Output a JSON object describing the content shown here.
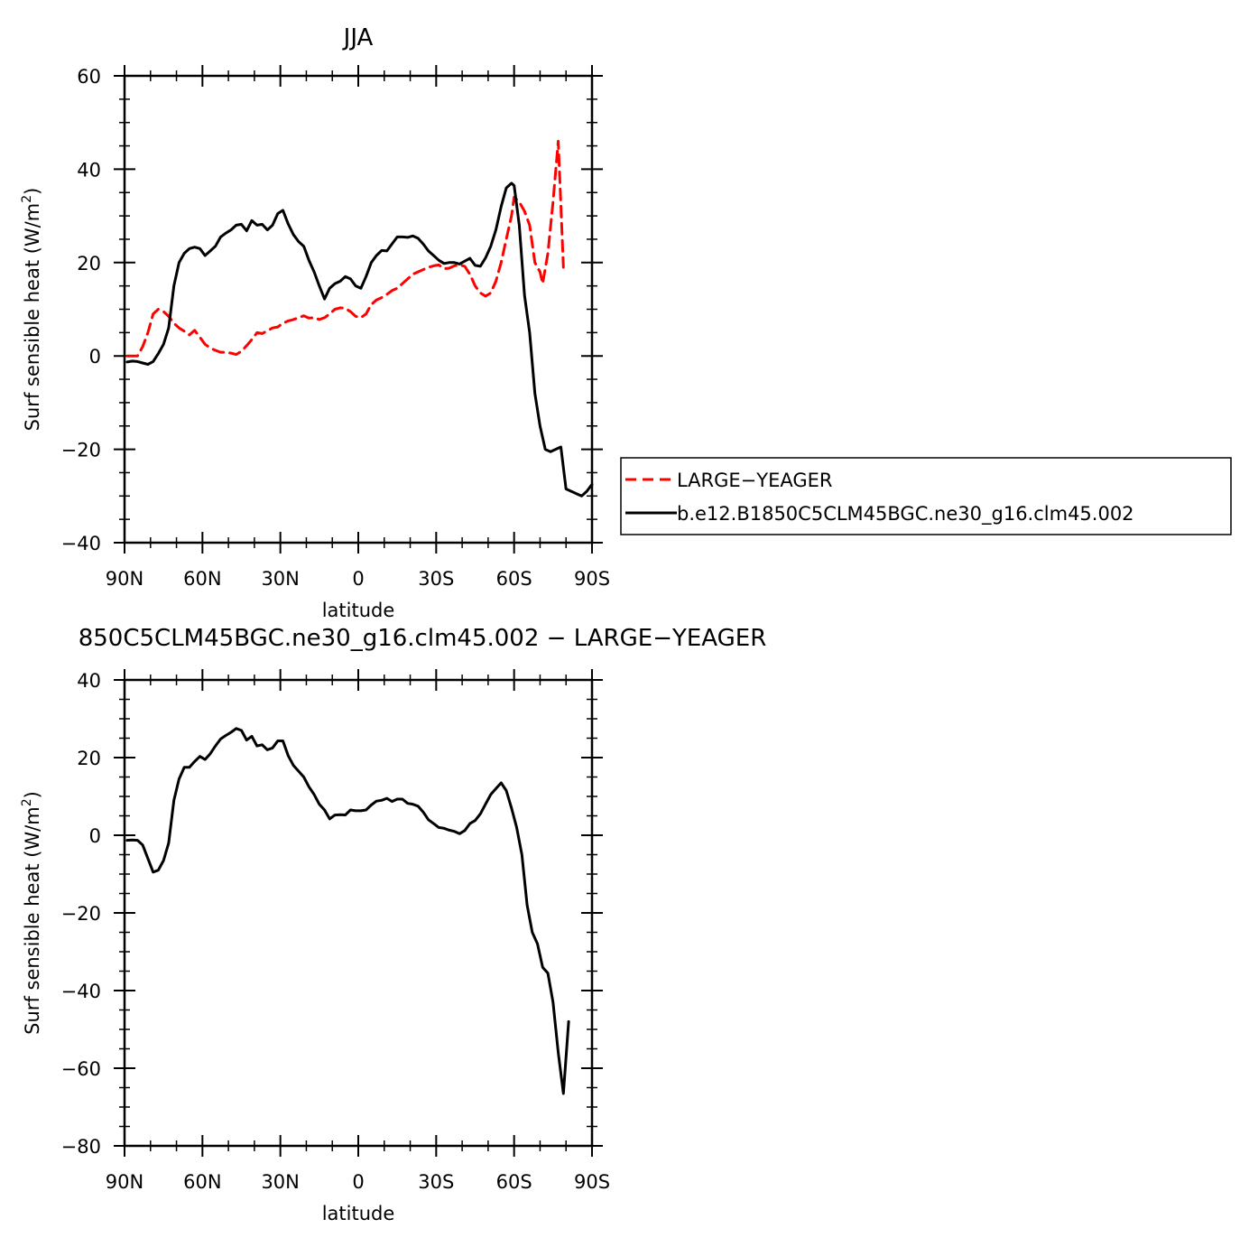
{
  "chart_data": [
    {
      "type": "line",
      "title": "JJA",
      "xlabel": "latitude",
      "ylabel": "Surf sensible heat (W/m",
      "ylabel_sup": "2",
      "ylabel_close": ")",
      "xlim": [
        90,
        -90
      ],
      "ylim": [
        -40,
        60
      ],
      "xticks": [
        90,
        60,
        30,
        0,
        -30,
        -60,
        -90
      ],
      "xtick_labels": [
        "90N",
        "60N",
        "30N",
        "0",
        "30S",
        "60S",
        "90S"
      ],
      "yticks": [
        -40,
        -20,
        0,
        20,
        40,
        60
      ],
      "ytick_labels": [
        "−40",
        "−20",
        "0",
        "20",
        "40",
        "60"
      ],
      "grid": false,
      "legend_position": "right",
      "series": [
        {
          "name": "LARGE−YEAGER",
          "color": "#ff0000",
          "dash": "dashed",
          "points": [
            [
              89,
              0
            ],
            [
              87,
              0
            ],
            [
              85,
              0
            ],
            [
              83,
              2
            ],
            [
              81,
              5
            ],
            [
              79,
              9
            ],
            [
              77,
              10
            ],
            [
              75,
              9.5
            ],
            [
              73,
              8.5
            ],
            [
              71,
              7
            ],
            [
              69,
              6
            ],
            [
              67,
              5.3
            ],
            [
              65,
              4.5
            ],
            [
              63,
              5.5
            ],
            [
              61,
              4
            ],
            [
              59,
              2.5
            ],
            [
              57,
              1.7
            ],
            [
              55,
              1.2
            ],
            [
              53,
              0.8
            ],
            [
              51,
              0.8
            ],
            [
              49,
              0.6
            ],
            [
              47,
              0.3
            ],
            [
              45,
              1
            ],
            [
              43,
              2.2
            ],
            [
              41,
              3.5
            ],
            [
              39,
              5
            ],
            [
              37,
              4.8
            ],
            [
              35,
              5.4
            ],
            [
              33,
              6
            ],
            [
              31,
              6.2
            ],
            [
              29,
              7
            ],
            [
              27,
              7.5
            ],
            [
              25,
              7.8
            ],
            [
              23,
              8.2
            ],
            [
              21,
              8.6
            ],
            [
              19,
              8.1
            ],
            [
              17,
              8.2
            ],
            [
              15,
              7.8
            ],
            [
              13,
              8.2
            ],
            [
              11,
              9
            ],
            [
              9,
              10
            ],
            [
              7,
              10.3
            ],
            [
              5,
              10.2
            ],
            [
              3,
              9.5
            ],
            [
              1,
              8.5
            ],
            [
              -1,
              8.2
            ],
            [
              -3,
              9
            ],
            [
              -5,
              11
            ],
            [
              -7,
              12
            ],
            [
              -9,
              12.5
            ],
            [
              -11,
              13.2
            ],
            [
              -13,
              14
            ],
            [
              -15,
              14.5
            ],
            [
              -17,
              15.5
            ],
            [
              -19,
              16.5
            ],
            [
              -21,
              17.5
            ],
            [
              -23,
              18
            ],
            [
              -25,
              18.5
            ],
            [
              -27,
              19
            ],
            [
              -29,
              19.3
            ],
            [
              -31,
              19.5
            ],
            [
              -33,
              18.7
            ],
            [
              -35,
              18.8
            ],
            [
              -37,
              19.3
            ],
            [
              -39,
              19.5
            ],
            [
              -41,
              19.2
            ],
            [
              -43,
              17.5
            ],
            [
              -45,
              15
            ],
            [
              -47,
              13.5
            ],
            [
              -49,
              12.8
            ],
            [
              -51,
              13.5
            ],
            [
              -53,
              16
            ],
            [
              -55,
              20
            ],
            [
              -57,
              25
            ],
            [
              -59,
              30
            ],
            [
              -60,
              34
            ],
            [
              -62,
              33
            ],
            [
              -64,
              31
            ],
            [
              -66,
              28
            ],
            [
              -68,
              20
            ],
            [
              -70,
              18
            ],
            [
              -71,
              15.5
            ],
            [
              -73,
              22
            ],
            [
              -75,
              33
            ],
            [
              -77,
              46
            ],
            [
              -79,
              19
            ]
          ]
        },
        {
          "name": "b.e12.B1850C5CLM45BGC.ne30_g16.clm45.002",
          "color": "#000000",
          "dash": "solid",
          "points": [
            [
              89,
              -1.3
            ],
            [
              87,
              -1.1
            ],
            [
              85,
              -1.2
            ],
            [
              83,
              -1.5
            ],
            [
              81,
              -1.8
            ],
            [
              79,
              -1.2
            ],
            [
              77,
              0.5
            ],
            [
              75,
              2.5
            ],
            [
              73,
              6
            ],
            [
              71,
              15
            ],
            [
              69,
              20
            ],
            [
              67,
              22
            ],
            [
              65,
              23
            ],
            [
              63,
              23.3
            ],
            [
              61,
              23
            ],
            [
              59,
              21.5
            ],
            [
              57,
              22.5
            ],
            [
              55,
              23.5
            ],
            [
              53,
              25.5
            ],
            [
              51,
              26.3
            ],
            [
              49,
              27
            ],
            [
              47,
              28
            ],
            [
              45,
              28.2
            ],
            [
              43,
              26.8
            ],
            [
              41,
              29
            ],
            [
              39,
              28
            ],
            [
              37,
              28.2
            ],
            [
              35,
              27
            ],
            [
              33,
              28
            ],
            [
              31,
              30.5
            ],
            [
              29,
              31.2
            ],
            [
              27,
              28.3
            ],
            [
              25,
              26
            ],
            [
              23,
              24.5
            ],
            [
              21,
              23.5
            ],
            [
              19,
              20.5
            ],
            [
              17,
              18
            ],
            [
              15,
              15
            ],
            [
              13,
              12.2
            ],
            [
              11,
              14.5
            ],
            [
              9,
              15.5
            ],
            [
              7,
              16
            ],
            [
              5,
              17
            ],
            [
              3,
              16.5
            ],
            [
              1,
              15
            ],
            [
              -1,
              14.5
            ],
            [
              -3,
              17
            ],
            [
              -5,
              20
            ],
            [
              -7,
              21.5
            ],
            [
              -9,
              22.6
            ],
            [
              -11,
              22.5
            ],
            [
              -13,
              24
            ],
            [
              -15,
              25.5
            ],
            [
              -17,
              25.5
            ],
            [
              -19,
              25.4
            ],
            [
              -21,
              25.7
            ],
            [
              -23,
              25.2
            ],
            [
              -25,
              24
            ],
            [
              -27,
              22.5
            ],
            [
              -29,
              21.5
            ],
            [
              -31,
              20.5
            ],
            [
              -33,
              19.8
            ],
            [
              -35,
              20
            ],
            [
              -37,
              20
            ],
            [
              -39,
              19.7
            ],
            [
              -41,
              20.3
            ],
            [
              -43,
              20.9
            ],
            [
              -45,
              19.4
            ],
            [
              -47,
              19.2
            ],
            [
              -49,
              21
            ],
            [
              -51,
              23.5
            ],
            [
              -53,
              27
            ],
            [
              -55,
              32
            ],
            [
              -57,
              36
            ],
            [
              -59,
              37
            ],
            [
              -60,
              36.5
            ],
            [
              -62,
              28
            ],
            [
              -64,
              13
            ],
            [
              -66,
              5
            ],
            [
              -68,
              -8
            ],
            [
              -70,
              -15
            ],
            [
              -72,
              -20
            ],
            [
              -74,
              -20.5
            ],
            [
              -76,
              -20
            ],
            [
              -78,
              -19.5
            ],
            [
              -80,
              -28.5
            ],
            [
              -82,
              -29
            ],
            [
              -84,
              -29.5
            ],
            [
              -86,
              -30
            ],
            [
              -88,
              -29
            ],
            [
              -90,
              -27.5
            ]
          ]
        }
      ]
    },
    {
      "type": "line",
      "title": "850C5CLM45BGC.ne30_g16.clm45.002 − LARGE−YEAGER",
      "xlabel": "latitude",
      "ylabel": "Surf sensible heat (W/m",
      "ylabel_sup": "2",
      "ylabel_close": ")",
      "xlim": [
        90,
        -90
      ],
      "ylim": [
        -80,
        40
      ],
      "xticks": [
        90,
        60,
        30,
        0,
        -30,
        -60,
        -90
      ],
      "xtick_labels": [
        "90N",
        "60N",
        "30N",
        "0",
        "30S",
        "60S",
        "90S"
      ],
      "yticks": [
        -80,
        -60,
        -40,
        -20,
        0,
        20,
        40
      ],
      "ytick_labels": [
        "−80",
        "−60",
        "−40",
        "−20",
        "0",
        "20",
        "40"
      ],
      "grid": false,
      "legend_position": "none",
      "series": [
        {
          "color": "#000000",
          "dash": "solid",
          "points": [
            [
              89,
              -1.3
            ],
            [
              87,
              -1.2
            ],
            [
              85,
              -1.3
            ],
            [
              83,
              -2.5
            ],
            [
              81,
              -6
            ],
            [
              79,
              -9.5
            ],
            [
              77,
              -9
            ],
            [
              75,
              -6.5
            ],
            [
              73,
              -2
            ],
            [
              71,
              9
            ],
            [
              69,
              14.5
            ],
            [
              67,
              17.5
            ],
            [
              65,
              17.5
            ],
            [
              63,
              19
            ],
            [
              61,
              20.3
            ],
            [
              59,
              19.5
            ],
            [
              57,
              21
            ],
            [
              55,
              23
            ],
            [
              53,
              24.8
            ],
            [
              51,
              25.7
            ],
            [
              49,
              26.5
            ],
            [
              47,
              27.5
            ],
            [
              45,
              27
            ],
            [
              43,
              24.5
            ],
            [
              41,
              25.5
            ],
            [
              39,
              23
            ],
            [
              37,
              23.3
            ],
            [
              35,
              22
            ],
            [
              33,
              22.5
            ],
            [
              31,
              24.3
            ],
            [
              29,
              24.3
            ],
            [
              27,
              20.5
            ],
            [
              25,
              18
            ],
            [
              23,
              16.5
            ],
            [
              21,
              15
            ],
            [
              19,
              12.5
            ],
            [
              17,
              10.5
            ],
            [
              15,
              8
            ],
            [
              13,
              6.5
            ],
            [
              11,
              4.2
            ],
            [
              9,
              5.2
            ],
            [
              7,
              5.3
            ],
            [
              5,
              5.2
            ],
            [
              3,
              6.5
            ],
            [
              1,
              6.3
            ],
            [
              -1,
              6.3
            ],
            [
              -3,
              6.5
            ],
            [
              -5,
              7.8
            ],
            [
              -7,
              8.8
            ],
            [
              -9,
              9
            ],
            [
              -11,
              9.5
            ],
            [
              -13,
              8.7
            ],
            [
              -15,
              9.3
            ],
            [
              -17,
              9.3
            ],
            [
              -19,
              8.2
            ],
            [
              -21,
              8
            ],
            [
              -23,
              7.5
            ],
            [
              -25,
              6
            ],
            [
              -27,
              4
            ],
            [
              -29,
              3
            ],
            [
              -31,
              2
            ],
            [
              -33,
              1.8
            ],
            [
              -35,
              1.3
            ],
            [
              -37,
              1
            ],
            [
              -39,
              0.4
            ],
            [
              -41,
              1.2
            ],
            [
              -43,
              3
            ],
            [
              -45,
              3.8
            ],
            [
              -47,
              5.5
            ],
            [
              -49,
              8
            ],
            [
              -51,
              10.5
            ],
            [
              -53,
              12
            ],
            [
              -55,
              13.5
            ],
            [
              -57,
              11.5
            ],
            [
              -59,
              7
            ],
            [
              -61,
              2
            ],
            [
              -63,
              -5
            ],
            [
              -65,
              -18
            ],
            [
              -67,
              -25
            ],
            [
              -69,
              -28
            ],
            [
              -71,
              -34
            ],
            [
              -73,
              -35.5
            ],
            [
              -75,
              -43
            ],
            [
              -77,
              -56
            ],
            [
              -79,
              -66.5
            ],
            [
              -81,
              -48
            ]
          ]
        }
      ]
    }
  ],
  "legend": {
    "entries": [
      {
        "label": "LARGE−YEAGER",
        "color": "#ff0000",
        "dash": "dashed"
      },
      {
        "label": "b.e12.B1850C5CLM45BGC.ne30_g16.clm45.002",
        "color": "#000000",
        "dash": "solid"
      }
    ]
  }
}
